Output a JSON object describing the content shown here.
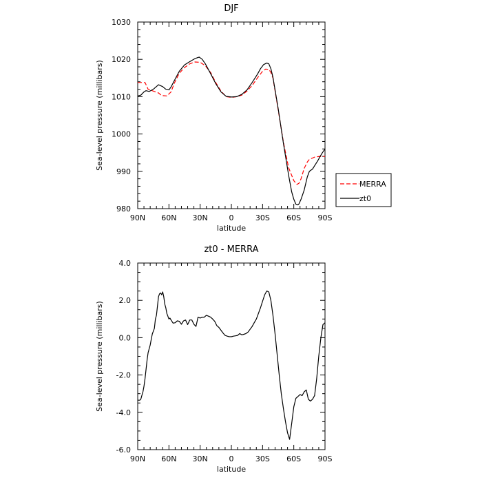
{
  "chart_data": [
    {
      "type": "line",
      "title": "DJF",
      "xlabel": "latitude",
      "ylabel": "Sea-level pressure (millibars)",
      "xticks": [
        "90N",
        "60N",
        "30N",
        "0",
        "30S",
        "60S",
        "90S"
      ],
      "xtick_values": [
        90,
        60,
        30,
        0,
        -30,
        -60,
        -90
      ],
      "xlim": [
        90,
        -90
      ],
      "ylim": [
        980,
        1030
      ],
      "yticks": [
        "980",
        "990",
        "1000",
        "1010",
        "1020",
        "1030"
      ],
      "ytick_values": [
        980,
        990,
        1000,
        1010,
        1020,
        1030
      ],
      "legend": {
        "placement": "right",
        "entries": [
          "MERRA",
          "zt0"
        ]
      },
      "series": [
        {
          "name": "MERRA",
          "color": "#ff0000",
          "style": "dashed",
          "x": [
            90,
            85,
            83,
            80,
            75,
            70,
            67,
            62,
            58,
            55,
            50,
            45,
            40,
            35,
            30,
            25,
            20,
            15,
            10,
            5,
            0,
            -5,
            -10,
            -15,
            -20,
            -25,
            -30,
            -33,
            -36,
            -38,
            -40,
            -45,
            -50,
            -55,
            -60,
            -63,
            -65,
            -67,
            -70,
            -73,
            -75,
            -80,
            -85,
            -90
          ],
          "y": [
            1013.8,
            1013.8,
            1013.8,
            1012.0,
            1011.5,
            1011.0,
            1010.3,
            1010.2,
            1011.3,
            1013.5,
            1016.3,
            1017.8,
            1018.8,
            1019.3,
            1019.2,
            1018.3,
            1016.5,
            1013.8,
            1011.5,
            1010.0,
            1009.8,
            1010.0,
            1010.4,
            1011.5,
            1013.0,
            1015.0,
            1016.8,
            1017.4,
            1017.3,
            1016.5,
            1015.0,
            1006.5,
            997.8,
            991.0,
            987.5,
            986.5,
            986.8,
            988.0,
            990.8,
            992.5,
            993.2,
            993.8,
            994.0,
            994.0
          ]
        },
        {
          "name": "zt0",
          "color": "#000000",
          "style": "solid",
          "x": [
            90,
            87,
            84,
            82,
            79,
            75,
            70,
            66,
            63,
            60,
            58,
            55,
            50,
            45,
            40,
            35,
            31,
            28,
            25,
            20,
            15,
            10,
            5,
            0,
            -5,
            -10,
            -15,
            -20,
            -25,
            -28,
            -31,
            -34,
            -36,
            -38,
            -40,
            -45,
            -50,
            -55,
            -58,
            -60,
            -62,
            -64,
            -65,
            -67,
            -70,
            -73,
            -75,
            -78,
            -80,
            -83,
            -85,
            -87,
            -90
          ],
          "y": [
            1010.2,
            1010.4,
            1011.3,
            1011.6,
            1011.4,
            1012.0,
            1013.2,
            1012.7,
            1012.0,
            1011.8,
            1012.6,
            1014.2,
            1016.8,
            1018.5,
            1019.4,
            1020.2,
            1020.6,
            1020.0,
            1018.8,
            1016.2,
            1013.5,
            1011.3,
            1010.1,
            1009.9,
            1010.0,
            1010.6,
            1011.8,
            1013.8,
            1016.0,
            1017.5,
            1018.6,
            1019.0,
            1018.8,
            1017.5,
            1015.2,
            1006.8,
            997.5,
            989.0,
            984.5,
            982.5,
            981.2,
            981.0,
            981.3,
            982.5,
            985.0,
            988.5,
            990.0,
            990.6,
            991.5,
            992.8,
            993.8,
            994.8,
            996.0
          ]
        }
      ]
    },
    {
      "type": "line",
      "title": "zt0 - MERRA",
      "xlabel": "latitude",
      "ylabel": "Sea-level pressure (millibars)",
      "xticks": [
        "90N",
        "60N",
        "30N",
        "0",
        "30S",
        "60S",
        "90S"
      ],
      "xtick_values": [
        90,
        60,
        30,
        0,
        -30,
        -60,
        -90
      ],
      "xlim": [
        90,
        -90
      ],
      "ylim": [
        -6,
        4
      ],
      "yticks": [
        "-6.0",
        "-4.0",
        "-2.0",
        "0.0",
        "2.0",
        "4.0"
      ],
      "ytick_values": [
        -6,
        -4,
        -2,
        0,
        2,
        4
      ],
      "series": [
        {
          "color": "#000000",
          "style": "solid",
          "x": [
            90,
            88,
            87,
            86,
            85,
            84,
            83,
            82,
            81,
            80,
            78,
            77,
            76,
            75,
            74,
            73,
            72,
            70,
            69,
            68,
            67,
            66,
            65,
            64,
            63,
            62,
            61,
            60,
            59,
            58,
            56,
            54,
            52,
            50,
            48,
            46,
            44,
            42,
            40,
            38,
            36,
            34,
            32,
            30,
            28,
            26,
            24,
            22,
            20,
            18,
            16,
            14,
            12,
            10,
            8,
            6,
            4,
            2,
            0,
            -2,
            -4,
            -6,
            -8,
            -10,
            -12,
            -14,
            -16,
            -18,
            -20,
            -22,
            -24,
            -26,
            -28,
            -30,
            -32,
            -34,
            -36,
            -38,
            -40,
            -42,
            -44,
            -46,
            -48,
            -50,
            -52,
            -54,
            -56,
            -58,
            -60,
            -62,
            -64,
            -66,
            -68,
            -70,
            -72,
            -74,
            -76,
            -78,
            -80,
            -82,
            -84,
            -86,
            -88,
            -90
          ],
          "y": [
            -3.35,
            -3.35,
            -3.3,
            -3.1,
            -2.9,
            -2.6,
            -2.2,
            -1.7,
            -1.2,
            -0.8,
            -0.4,
            -0.1,
            0.2,
            0.35,
            0.5,
            1.0,
            1.2,
            2.2,
            2.35,
            2.4,
            2.3,
            2.45,
            2.2,
            1.8,
            1.6,
            1.3,
            1.15,
            1.0,
            1.05,
            0.95,
            0.78,
            0.8,
            0.9,
            0.88,
            0.72,
            0.9,
            0.95,
            0.7,
            0.95,
            0.95,
            0.72,
            0.6,
            1.1,
            1.05,
            1.1,
            1.1,
            1.2,
            1.15,
            1.1,
            1.0,
            0.88,
            0.65,
            0.55,
            0.4,
            0.25,
            0.12,
            0.08,
            0.05,
            0.05,
            0.08,
            0.1,
            0.12,
            0.22,
            0.15,
            0.18,
            0.22,
            0.3,
            0.45,
            0.6,
            0.8,
            1.0,
            1.3,
            1.6,
            1.95,
            2.3,
            2.5,
            2.45,
            2.0,
            1.2,
            0.2,
            -0.9,
            -2.0,
            -3.0,
            -3.8,
            -4.5,
            -5.1,
            -5.45,
            -4.6,
            -3.7,
            -3.25,
            -3.15,
            -3.05,
            -3.1,
            -2.9,
            -2.8,
            -3.3,
            -3.4,
            -3.3,
            -3.1,
            -2.2,
            -1.0,
            0.0,
            0.7,
            0.8
          ]
        }
      ]
    }
  ]
}
